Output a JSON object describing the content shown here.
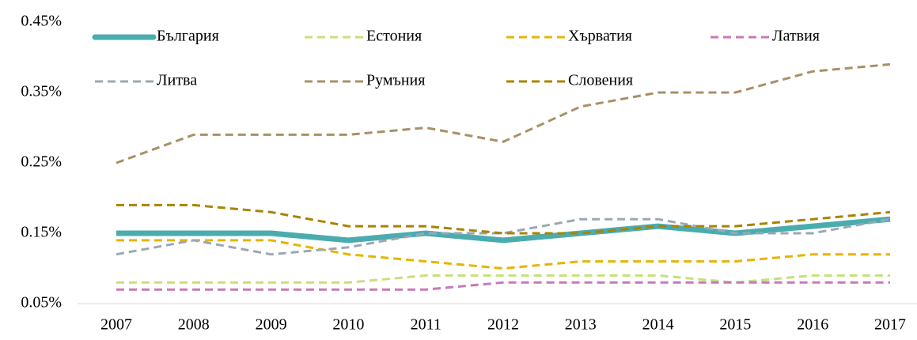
{
  "chart_data": {
    "type": "line",
    "categories": [
      "2007",
      "2008",
      "2009",
      "2010",
      "2011",
      "2012",
      "2013",
      "2014",
      "2015",
      "2016",
      "2017"
    ],
    "ylim": [
      0.05,
      0.45
    ],
    "yticks": [
      {
        "value": 0.05,
        "label": "0.05%"
      },
      {
        "value": 0.15,
        "label": "0.15%"
      },
      {
        "value": 0.25,
        "label": "0.25%"
      },
      {
        "value": 0.35,
        "label": "0.35%"
      },
      {
        "value": 0.45,
        "label": "0.45%"
      }
    ],
    "grid": false,
    "legend": "top",
    "series": [
      {
        "name": "България",
        "color": "#4bacb0",
        "style": "solid",
        "values": [
          0.15,
          0.15,
          0.15,
          0.14,
          0.15,
          0.14,
          0.15,
          0.16,
          0.15,
          0.16,
          0.17
        ]
      },
      {
        "name": "Естония",
        "color": "#c6e07a",
        "style": "dashed",
        "values": [
          0.08,
          0.08,
          0.08,
          0.08,
          0.09,
          0.09,
          0.09,
          0.09,
          0.08,
          0.09,
          0.09
        ]
      },
      {
        "name": "Хърватия",
        "color": "#e6b400",
        "style": "dashed",
        "values": [
          0.14,
          0.14,
          0.14,
          0.12,
          0.11,
          0.1,
          0.11,
          0.11,
          0.11,
          0.12,
          0.12
        ]
      },
      {
        "name": "Латвия",
        "color": "#c878b8",
        "style": "dashed",
        "values": [
          0.07,
          0.07,
          0.07,
          0.07,
          0.07,
          0.08,
          0.08,
          0.08,
          0.08,
          0.08,
          0.08
        ]
      },
      {
        "name": "Литва",
        "color": "#9aa8b4",
        "style": "dashed",
        "values": [
          0.12,
          0.14,
          0.12,
          0.13,
          0.15,
          0.15,
          0.17,
          0.17,
          0.15,
          0.15,
          0.17
        ]
      },
      {
        "name": "Румъния",
        "color": "#a89066",
        "style": "dashed",
        "values": [
          0.25,
          0.29,
          0.29,
          0.29,
          0.3,
          0.28,
          0.33,
          0.35,
          0.35,
          0.38,
          0.39
        ]
      },
      {
        "name": "Словения",
        "color": "#a88400",
        "style": "dashed",
        "values": [
          0.19,
          0.19,
          0.18,
          0.16,
          0.16,
          0.15,
          0.15,
          0.16,
          0.16,
          0.17,
          0.18
        ]
      }
    ]
  }
}
